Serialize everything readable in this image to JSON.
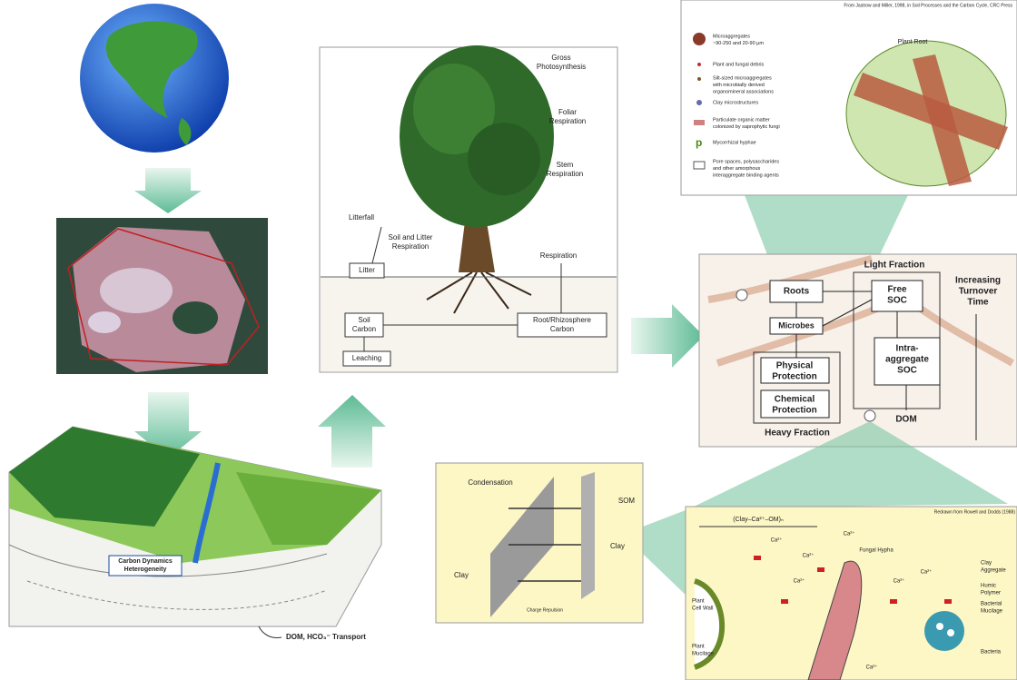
{
  "tree_panel": {
    "gross_photosynthesis": [
      "Gross",
      "Photosynthesis"
    ],
    "foliar_respiration": [
      "Foliar",
      "Respiration"
    ],
    "stem_respiration": [
      "Stem",
      "Respiration"
    ],
    "litterfall": "Litterfall",
    "soil_litter_respiration": [
      "Soil and Litter",
      "Respiration"
    ],
    "litter": "Litter",
    "respiration": "Respiration",
    "soil_carbon": [
      "Soil",
      "Carbon"
    ],
    "root_carbon": [
      "Root/Rhizosphere",
      "Carbon"
    ],
    "leaching": "Leaching"
  },
  "soil_fractions": {
    "light_fraction": "Light Fraction",
    "roots": "Roots",
    "free_soc": [
      "Free",
      "SOC"
    ],
    "turnover": [
      "Increasing",
      "Turnover",
      "Time"
    ],
    "microbes": "Microbes",
    "physical": [
      "Physical",
      "Protection"
    ],
    "chemical": [
      "Chemical",
      "Protection"
    ],
    "intra": [
      "Intra-",
      "aggregate",
      "SOC"
    ],
    "dom": "DOM",
    "heavy_fraction": "Heavy Fraction"
  },
  "aggregate_legend": {
    "source": "From Jastrow and Miller, 1998, in Soil Processes and the Carbon Cycle, CRC Press",
    "plant_root": "Plant Root",
    "items": [
      [
        "Microaggregates",
        "~90-250 and 20-90 µm"
      ],
      [
        "Plant and fungal debris"
      ],
      [
        "Silt-sized microaggregates",
        "with microbially derived",
        "organomineral associations"
      ],
      [
        "Clay microstructures"
      ],
      [
        "Particulate organic matter",
        "colonized by saprophytic fungi"
      ],
      [
        "Mycorrhizal hyphae"
      ],
      [
        "Pore spaces, polysaccharides",
        "and other amorphous",
        "interaggregate binding agents"
      ]
    ]
  },
  "landscape": {
    "heterogeneity": [
      "Carbon Dynamics",
      "Heterogeneity"
    ],
    "transport": "DOM, HCO₃⁻ Transport"
  },
  "clay_panel": {
    "condensation": "Condensation",
    "som": "SOM",
    "clay_left": "Clay",
    "clay_right": "Clay",
    "charge_repulsion": "Charge Repulsion"
  },
  "rhizosphere_panel": {
    "source": "Redrawn from Rowell and Dodds (1988)",
    "complex": "(Clay–Ca²⁺–OM)ₙ",
    "fungal_hypha": "Fungal Hypha",
    "clay_aggregate": [
      "Clay",
      "Aggregate"
    ],
    "humic_polymer": [
      "Humic",
      "Polymer"
    ],
    "bacterial_mucilage": [
      "Bacterial",
      "Mucilage"
    ],
    "plant_cell_wall": [
      "Plant",
      "Cell Wall"
    ],
    "plant_mucilage": [
      "Plant",
      "Mucilage"
    ],
    "bacteria": "Bacteria",
    "cation": "Ca²⁺"
  }
}
